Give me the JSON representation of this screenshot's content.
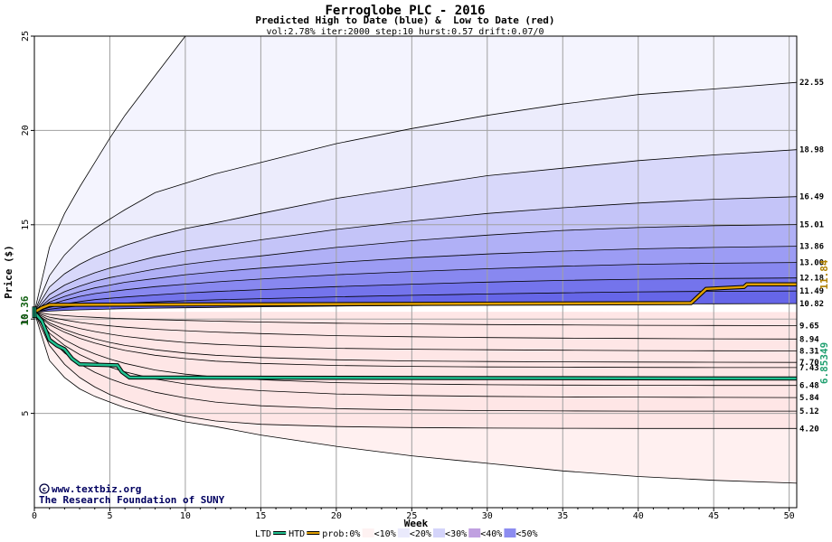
{
  "chart_data": {
    "type": "area",
    "title": "Ferroglobe PLC - 2016",
    "subtitle": "Predicted High to Date (blue) &  Low to Date (red)",
    "params": "vol:2.78% iter:2000 step:10 hurst:0.57 drift:0.07/0",
    "xlabel": "Week",
    "ylabel": "Price ($)",
    "xlim": [
      0,
      50.5
    ],
    "ylim": [
      0,
      25
    ],
    "x_ticks": [
      0,
      5,
      10,
      15,
      20,
      25,
      30,
      35,
      40,
      45,
      50
    ],
    "y_ticks": [
      5,
      10,
      15,
      20,
      25
    ],
    "grid": true,
    "start_price": 10.36,
    "start_price_label": "10.36",
    "x_series": [
      0,
      1,
      2,
      3,
      4,
      5,
      6,
      8,
      10,
      12,
      15,
      20,
      25,
      30,
      35,
      40,
      45,
      50.5
    ],
    "bands": [
      {
        "end_label": "22.55",
        "end": 22.55,
        "fill": "#ececfc",
        "values": [
          10.36,
          12.3,
          13.4,
          14.2,
          14.8,
          15.3,
          15.8,
          16.7,
          17.2,
          17.7,
          18.3,
          19.3,
          20.1,
          20.8,
          21.4,
          21.9,
          22.2,
          22.55
        ]
      },
      {
        "end_label": "18.98",
        "end": 18.98,
        "fill": "#d8d8fa",
        "values": [
          10.36,
          11.7,
          12.4,
          12.9,
          13.3,
          13.6,
          13.9,
          14.4,
          14.8,
          15.1,
          15.6,
          16.4,
          17.0,
          17.6,
          18.0,
          18.4,
          18.7,
          18.98
        ]
      },
      {
        "end_label": "16.49",
        "end": 16.49,
        "fill": "#c4c4f8",
        "values": [
          10.36,
          11.3,
          11.8,
          12.15,
          12.45,
          12.7,
          12.9,
          13.3,
          13.6,
          13.85,
          14.2,
          14.75,
          15.2,
          15.6,
          15.9,
          16.15,
          16.35,
          16.49
        ]
      },
      {
        "end_label": "15.01",
        "end": 15.01,
        "fill": "#b0b0f6",
        "values": [
          10.36,
          11.05,
          11.45,
          11.75,
          12.0,
          12.2,
          12.35,
          12.65,
          12.9,
          13.1,
          13.35,
          13.8,
          14.15,
          14.45,
          14.7,
          14.85,
          14.95,
          15.01
        ]
      },
      {
        "end_label": "13.86",
        "end": 13.86,
        "fill": "#9c9cf4",
        "values": [
          10.36,
          10.9,
          11.2,
          11.45,
          11.65,
          11.8,
          11.95,
          12.15,
          12.35,
          12.5,
          12.7,
          13.0,
          13.25,
          13.45,
          13.6,
          13.72,
          13.8,
          13.86
        ]
      },
      {
        "end_label": "13.00",
        "end": 13.0,
        "fill": "#8888f0",
        "values": [
          10.36,
          10.75,
          11.0,
          11.2,
          11.35,
          11.45,
          11.55,
          11.72,
          11.85,
          11.97,
          12.12,
          12.35,
          12.52,
          12.67,
          12.8,
          12.9,
          12.96,
          13.0
        ]
      },
      {
        "end_label": "12.18",
        "end": 12.18,
        "fill": "#7474ec",
        "values": [
          10.36,
          10.62,
          10.8,
          10.93,
          11.03,
          11.1,
          11.17,
          11.28,
          11.38,
          11.46,
          11.56,
          11.72,
          11.85,
          11.96,
          12.05,
          12.11,
          12.15,
          12.18
        ]
      },
      {
        "end_label": "11.49",
        "end": 11.49,
        "fill": "#6666e8",
        "values": [
          10.36,
          10.52,
          10.62,
          10.7,
          10.76,
          10.81,
          10.85,
          10.91,
          10.97,
          11.02,
          11.08,
          11.18,
          11.26,
          11.33,
          11.39,
          11.44,
          11.47,
          11.49
        ]
      },
      {
        "end_label": "10.82",
        "end": 10.82,
        "fill": "#ffffff",
        "values": [
          10.36,
          10.42,
          10.46,
          10.49,
          10.51,
          10.53,
          10.55,
          10.58,
          10.6,
          10.62,
          10.65,
          10.69,
          10.72,
          10.75,
          10.78,
          10.8,
          10.81,
          10.82
        ]
      },
      {
        "end_label": "9.65",
        "end": 9.65,
        "fill": "#ffffff",
        "values": [
          10.36,
          10.25,
          10.18,
          10.13,
          10.09,
          10.05,
          10.02,
          9.97,
          9.93,
          9.89,
          9.84,
          9.78,
          9.74,
          9.71,
          9.69,
          9.67,
          9.66,
          9.65
        ]
      },
      {
        "end_label": "8.94",
        "end": 8.94,
        "fill": "#f86868",
        "values": [
          10.36,
          10.1,
          9.95,
          9.82,
          9.72,
          9.64,
          9.57,
          9.46,
          9.38,
          9.31,
          9.23,
          9.12,
          9.06,
          9.02,
          8.99,
          8.97,
          8.95,
          8.94
        ]
      },
      {
        "end_label": "8.31",
        "end": 8.31,
        "fill": "#f87c7c",
        "values": [
          10.36,
          9.95,
          9.7,
          9.5,
          9.34,
          9.2,
          9.08,
          8.9,
          8.76,
          8.66,
          8.56,
          8.45,
          8.4,
          8.37,
          8.35,
          8.33,
          8.32,
          8.31
        ]
      },
      {
        "end_label": "7.70",
        "end": 7.7,
        "fill": "#f99090",
        "values": [
          10.36,
          9.8,
          9.45,
          9.17,
          8.95,
          8.76,
          8.6,
          8.37,
          8.2,
          8.08,
          7.96,
          7.84,
          7.78,
          7.75,
          7.73,
          7.72,
          7.71,
          7.7
        ]
      },
      {
        "end_label": "7.43",
        "end": 7.43,
        "fill": "#faa4a4",
        "values": [
          10.36,
          9.7,
          9.3,
          8.98,
          8.73,
          8.52,
          8.34,
          8.08,
          7.9,
          7.77,
          7.65,
          7.54,
          7.49,
          7.46,
          7.45,
          7.44,
          7.43,
          7.43
        ]
      },
      {
        "end_label": "6.48",
        "end": 6.48,
        "fill": "#fbb8b8",
        "values": [
          10.36,
          9.45,
          8.9,
          8.48,
          8.15,
          7.88,
          7.65,
          7.3,
          7.08,
          6.93,
          6.78,
          6.63,
          6.56,
          6.52,
          6.5,
          6.49,
          6.48,
          6.48
        ]
      },
      {
        "end_label": "5.84",
        "end": 5.84,
        "fill": "#fcc8c8",
        "values": [
          10.36,
          9.25,
          8.6,
          8.12,
          7.75,
          7.45,
          7.2,
          6.82,
          6.56,
          6.38,
          6.2,
          6.03,
          5.95,
          5.9,
          5.87,
          5.86,
          5.85,
          5.84
        ]
      },
      {
        "end_label": "5.12",
        "end": 5.12,
        "fill": "#fdd8d8",
        "values": [
          10.36,
          9.0,
          8.2,
          7.62,
          7.18,
          6.83,
          6.55,
          6.12,
          5.82,
          5.6,
          5.4,
          5.25,
          5.18,
          5.15,
          5.13,
          5.12,
          5.12,
          5.12
        ]
      },
      {
        "end_label": "4.20",
        "end": 4.2,
        "fill": "#fee6e6",
        "values": [
          10.36,
          8.6,
          7.6,
          6.9,
          6.4,
          6.0,
          5.7,
          5.2,
          4.85,
          4.6,
          4.42,
          4.3,
          4.25,
          4.22,
          4.21,
          4.2,
          4.2,
          4.2
        ]
      }
    ],
    "outer_high_values": [
      10.36,
      13.8,
      15.6,
      17.0,
      18.3,
      19.6,
      20.8,
      22.9,
      25.0
    ],
    "outer_low_values": [
      10.36,
      7.8,
      6.9,
      6.3,
      5.9,
      5.6,
      5.3,
      4.9,
      4.55,
      4.3,
      3.85,
      3.25,
      2.75,
      2.35,
      1.95,
      1.65,
      1.45,
      1.3
    ],
    "htd_line": {
      "name": "HTD",
      "end_label": "11.84",
      "color": "#e0a000",
      "points": [
        [
          0,
          10.36
        ],
        [
          0.5,
          10.6
        ],
        [
          1,
          10.75
        ],
        [
          43.5,
          10.85
        ],
        [
          44.5,
          11.6
        ],
        [
          47,
          11.7
        ],
        [
          47.2,
          11.84
        ],
        [
          50.5,
          11.84
        ]
      ]
    },
    "ltd_line": {
      "name": "LTD",
      "end_label": "6.85349",
      "color": "#20c090",
      "points": [
        [
          0,
          10.36
        ],
        [
          0.5,
          9.9
        ],
        [
          1,
          8.9
        ],
        [
          1.5,
          8.6
        ],
        [
          2,
          8.4
        ],
        [
          2.5,
          7.9
        ],
        [
          3,
          7.6
        ],
        [
          5.5,
          7.55
        ],
        [
          5.8,
          7.2
        ],
        [
          6.3,
          6.9
        ],
        [
          50.5,
          6.85
        ]
      ]
    },
    "legend": {
      "ltd": "LTD",
      "htd": "HTD",
      "prob": "prob:0%",
      "bins": [
        {
          "label": "<10%",
          "color": "#fef2f2"
        },
        {
          "label": "<20%",
          "color": "#eaeafc"
        },
        {
          "label": "<30%",
          "color": "#d4d4fa"
        },
        {
          "label": "<40%",
          "color": "#c0a0e0"
        },
        {
          "label": "<50%",
          "color": "#8c8cf0"
        }
      ]
    },
    "credit_line1": "www.textbiz.org",
    "credit_line2": "The Research Foundation of SUNY"
  }
}
